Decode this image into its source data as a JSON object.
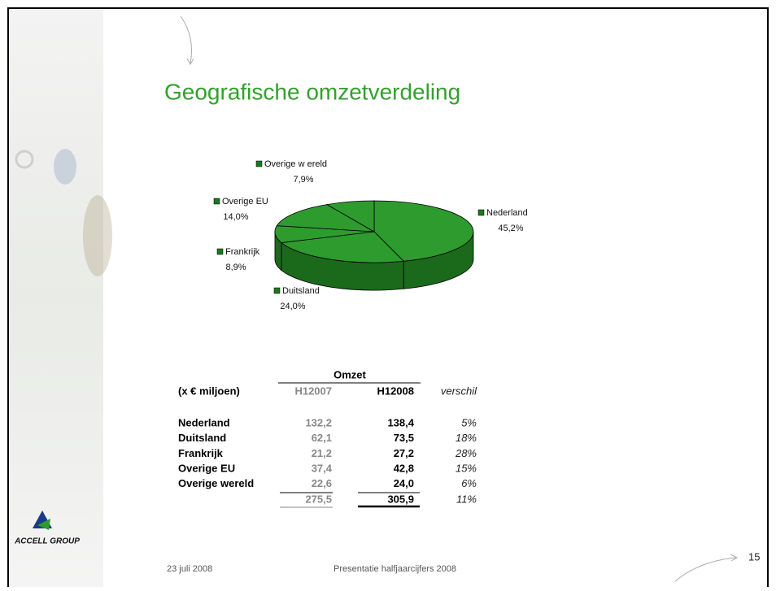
{
  "title": "Geografische omzetverdeling",
  "chart_data": {
    "type": "pie",
    "categories": [
      "Nederland",
      "Duitsland",
      "Frankrijk",
      "Overige EU",
      "Overige w ereld"
    ],
    "values": [
      45.2,
      24.0,
      8.9,
      14.0,
      7.9
    ],
    "value_labels": [
      "45,2%",
      "24,0%",
      "8,9%",
      "14,0%",
      "7,9%"
    ],
    "color": "#2e9b2e"
  },
  "table": {
    "group": "Omzet",
    "header": [
      "(x € miljoen)",
      "H12007",
      "H12008",
      "verschil"
    ],
    "rows": [
      [
        "Nederland",
        "132,2",
        "138,4",
        "5%"
      ],
      [
        "Duitsland",
        "62,1",
        "73,5",
        "18%"
      ],
      [
        "Frankrijk",
        "21,2",
        "27,2",
        "28%"
      ],
      [
        "Overige EU",
        "37,4",
        "42,8",
        "15%"
      ],
      [
        "Overige wereld",
        "22,6",
        "24,0",
        "6%"
      ]
    ],
    "total": [
      "275,5",
      "305,9",
      "11%"
    ]
  },
  "footer": {
    "date": "23 juli 2008",
    "presentation": "Presentatie halfjaarcijfers 2008",
    "page": "15"
  },
  "logo": "ACCELL GROUP"
}
